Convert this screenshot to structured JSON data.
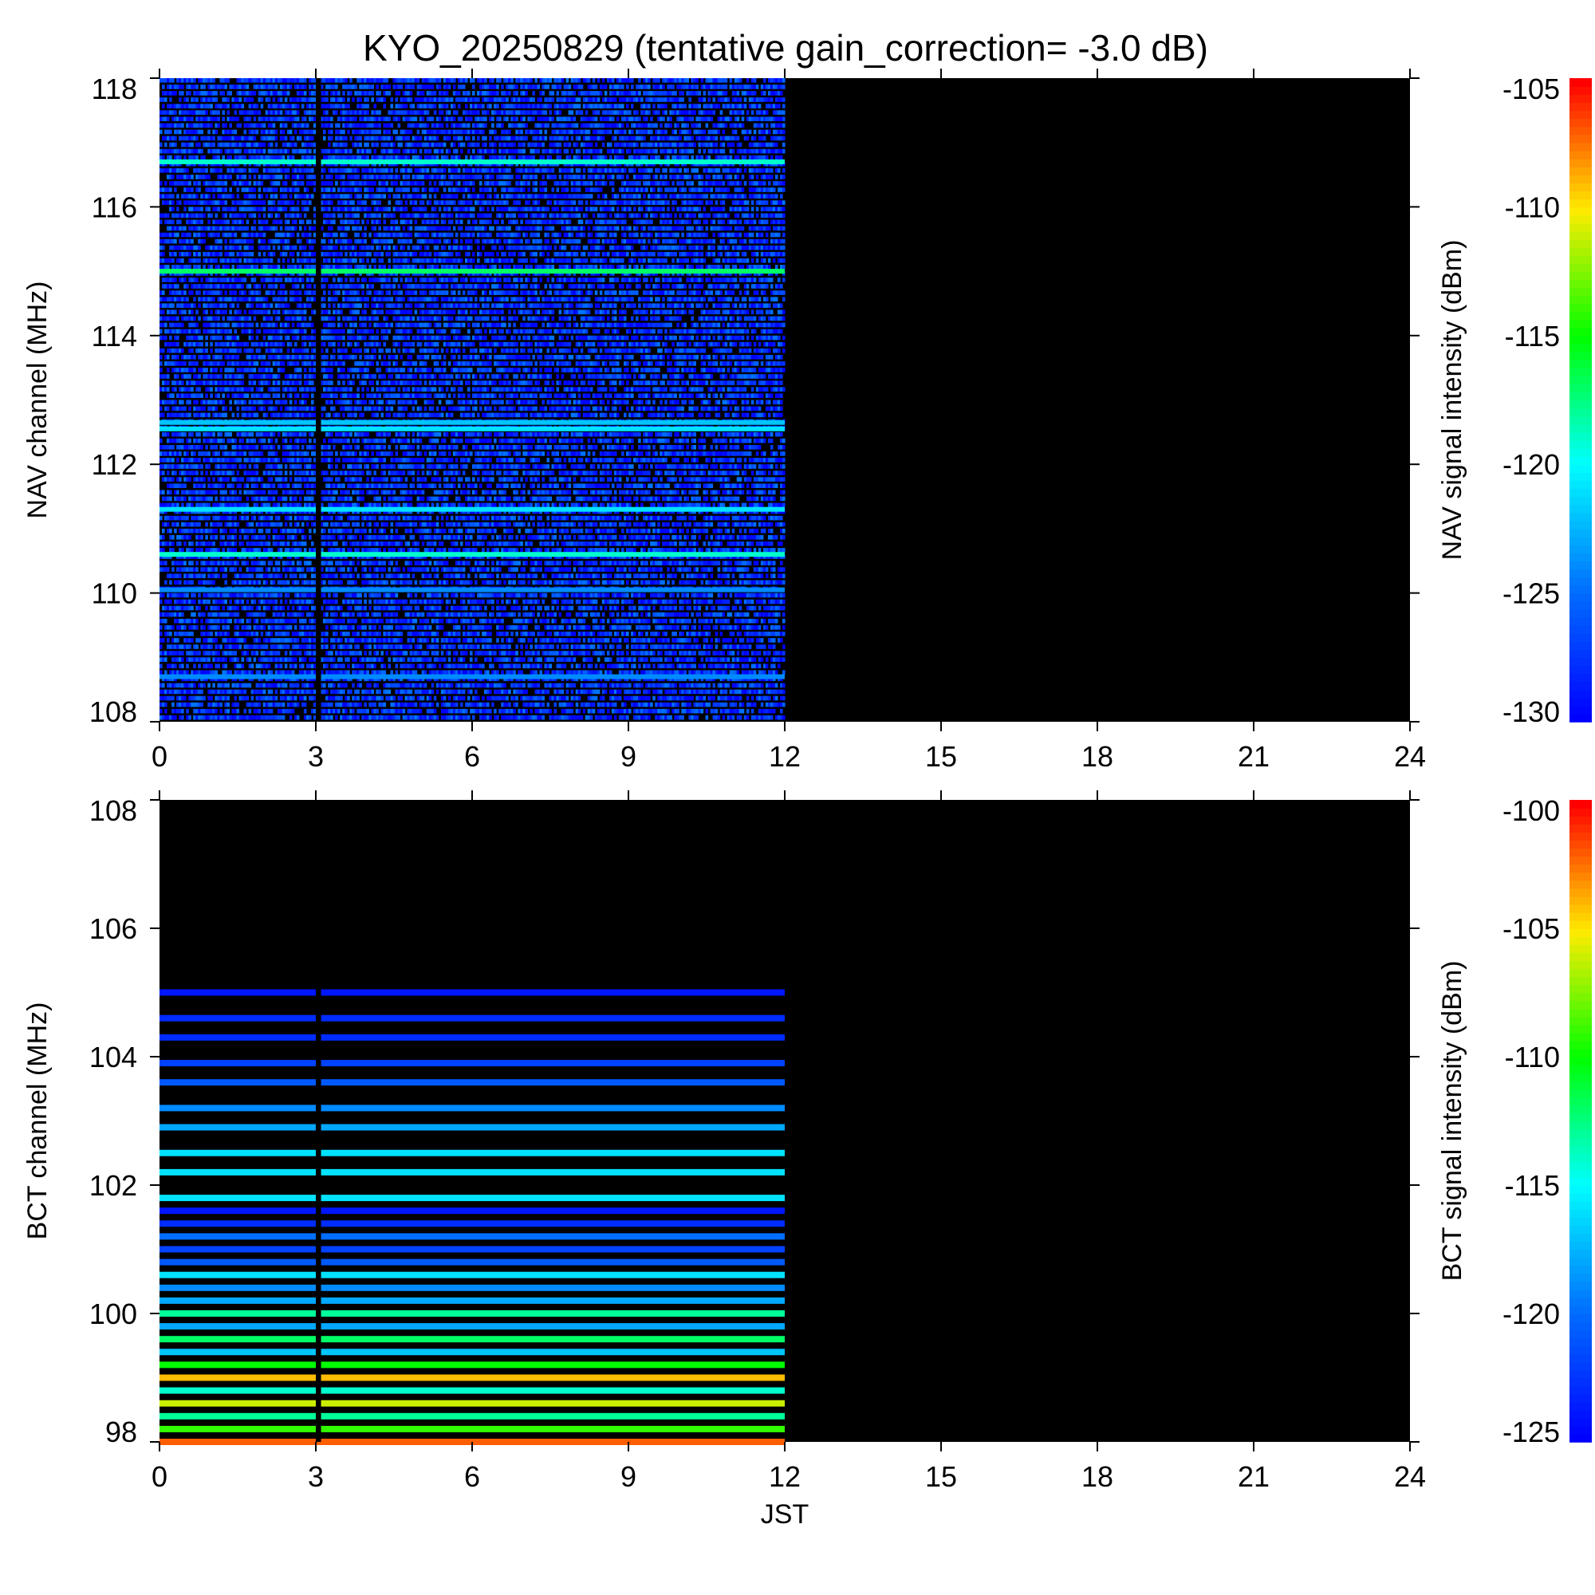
{
  "title": "KYO_20250829 (tentative gain_correction= -3.0 dB)",
  "chart_data": [
    {
      "type": "heatmap",
      "name": "NAV",
      "ylabel": "NAV channel (MHz)",
      "xlabel": "",
      "colorbar_label": "NAV signal intensity (dBm)",
      "xlim": [
        0,
        24
      ],
      "ylim": [
        108,
        118
      ],
      "x_ticks": [
        0,
        3,
        6,
        9,
        12,
        15,
        18,
        21,
        24
      ],
      "y_ticks": [
        108,
        110,
        112,
        114,
        116,
        118
      ],
      "colorbar_range": [
        -130,
        -105
      ],
      "colorbar_ticks": [
        -130,
        -125,
        -120,
        -115,
        -110,
        -105
      ],
      "data_time_range": [
        0,
        12
      ],
      "data_gap_times": [
        3.0,
        3.1
      ],
      "background_level": -128,
      "bright_channels": [
        {
          "freq": 116.7,
          "level": -119
        },
        {
          "freq": 115.0,
          "level": -117
        },
        {
          "freq": 112.65,
          "level": -122
        },
        {
          "freq": 112.55,
          "level": -121
        },
        {
          "freq": 111.3,
          "level": -121
        },
        {
          "freq": 110.6,
          "level": -119
        },
        {
          "freq": 110.05,
          "level": -124
        },
        {
          "freq": 108.7,
          "level": -124
        }
      ]
    },
    {
      "type": "heatmap",
      "name": "BCT",
      "ylabel": "BCT channel (MHz)",
      "xlabel": "JST",
      "colorbar_label": "BCT signal intensity (dBm)",
      "xlim": [
        0,
        24
      ],
      "ylim": [
        98,
        108
      ],
      "x_ticks": [
        0,
        3,
        6,
        9,
        12,
        15,
        18,
        21,
        24
      ],
      "y_ticks": [
        98,
        100,
        102,
        104,
        106,
        108
      ],
      "colorbar_range": [
        -125,
        -100
      ],
      "colorbar_ticks": [
        -125,
        -120,
        -115,
        -110,
        -105,
        -100
      ],
      "data_time_range": [
        0,
        12
      ],
      "data_gap_times": [
        3.0,
        3.1
      ],
      "channels": [
        {
          "freq": 105.0,
          "level": -124
        },
        {
          "freq": 104.6,
          "level": -123
        },
        {
          "freq": 104.3,
          "level": -123
        },
        {
          "freq": 103.9,
          "level": -122
        },
        {
          "freq": 103.6,
          "level": -121
        },
        {
          "freq": 103.2,
          "level": -119
        },
        {
          "freq": 102.9,
          "level": -118
        },
        {
          "freq": 102.5,
          "level": -116
        },
        {
          "freq": 102.2,
          "level": -116
        },
        {
          "freq": 101.8,
          "level": -116
        },
        {
          "freq": 101.6,
          "level": -124
        },
        {
          "freq": 101.4,
          "level": -123
        },
        {
          "freq": 101.2,
          "level": -120
        },
        {
          "freq": 101.0,
          "level": -122
        },
        {
          "freq": 100.8,
          "level": -121
        },
        {
          "freq": 100.6,
          "level": -116
        },
        {
          "freq": 100.4,
          "level": -119
        },
        {
          "freq": 100.2,
          "level": -118
        },
        {
          "freq": 100.0,
          "level": -113
        },
        {
          "freq": 99.8,
          "level": -118
        },
        {
          "freq": 99.6,
          "level": -112
        },
        {
          "freq": 99.4,
          "level": -117
        },
        {
          "freq": 99.2,
          "level": -110
        },
        {
          "freq": 99.0,
          "level": -104
        },
        {
          "freq": 98.8,
          "level": -114
        },
        {
          "freq": 98.6,
          "level": -106
        },
        {
          "freq": 98.4,
          "level": -113
        },
        {
          "freq": 98.2,
          "level": -109
        },
        {
          "freq": 98.0,
          "level": -102
        }
      ]
    }
  ]
}
